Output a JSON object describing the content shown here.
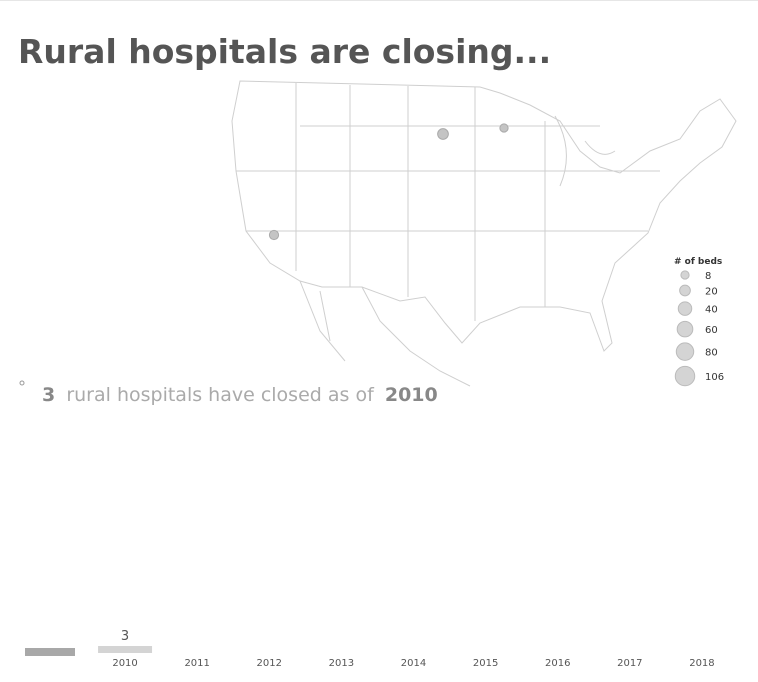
{
  "title": "Rural hospitals are closing...",
  "map": {
    "closures": [
      {
        "beds": 20
      },
      {
        "beds": 8
      },
      {
        "beds": 12
      }
    ],
    "legend": {
      "title": "# of beds",
      "values": [
        8,
        20,
        40,
        60,
        80,
        106
      ]
    }
  },
  "summary": {
    "count": "3",
    "text": "rural hospitals have closed as of",
    "year": "2010"
  },
  "chart_data": {
    "type": "bar",
    "categories": [
      "2010",
      "2011",
      "2012",
      "2013",
      "2014",
      "2015",
      "2016",
      "2017",
      "2018"
    ],
    "values": [
      3,
      null,
      null,
      null,
      null,
      null,
      null,
      null,
      null
    ],
    "color": "#d4d4d4"
  }
}
